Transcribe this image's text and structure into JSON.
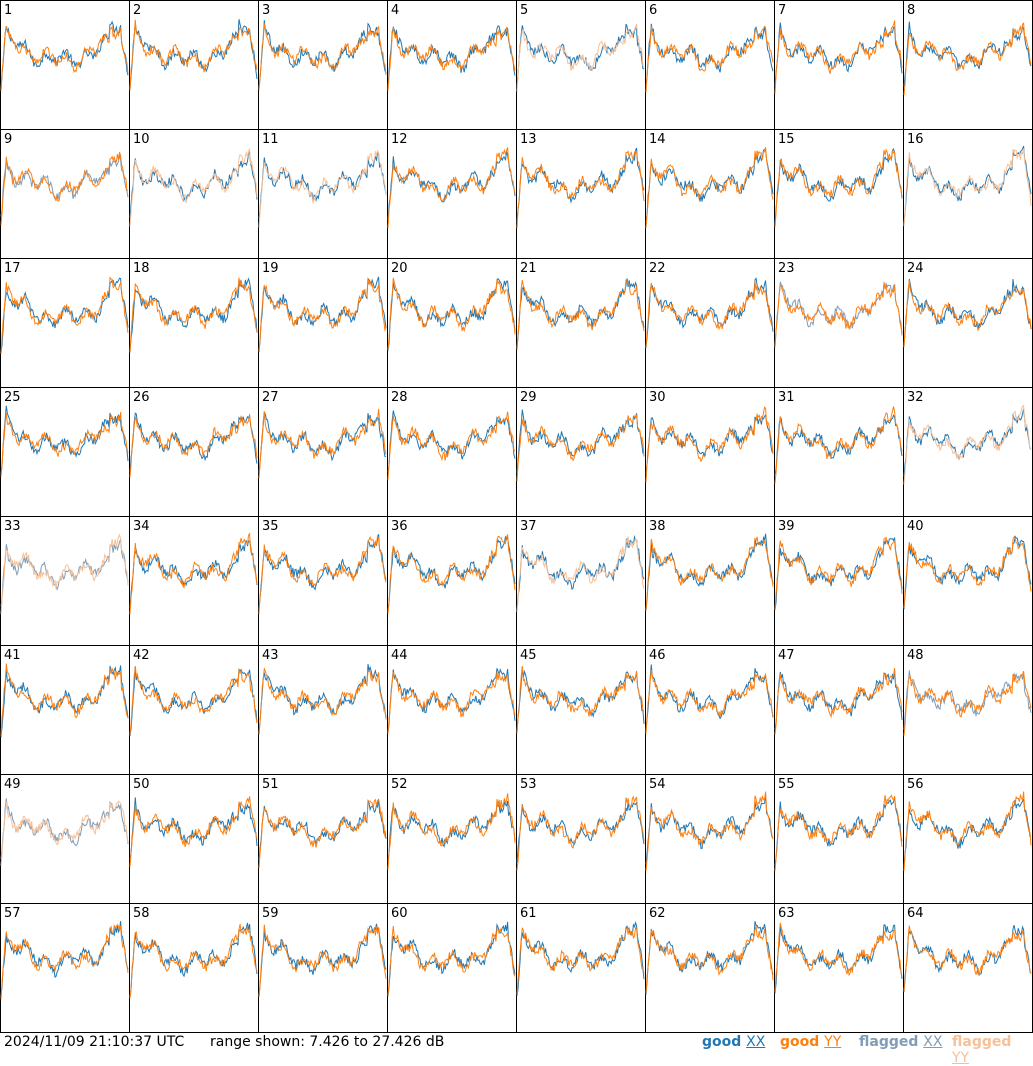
{
  "chart_data": {
    "type": "line",
    "grid": {
      "rows": 8,
      "cols": 8
    },
    "timestamp": "2024/11/09 21:10:37 UTC",
    "range_text": "range shown: 7.426 to 27.426 dB",
    "ylim": [
      7.426,
      27.426
    ],
    "legend": [
      {
        "label": "good",
        "pol": "XX",
        "color": "#1f77b4"
      },
      {
        "label": "good",
        "pol": "YY",
        "color": "#ff7f0e"
      },
      {
        "label": "flagged",
        "pol": "XX",
        "color": "#7f9cb8"
      },
      {
        "label": "flagged",
        "pol": "YY",
        "color": "#f7c097"
      }
    ],
    "colors": {
      "goodXX": "#1f77b4",
      "goodYY": "#ff7f0e",
      "flagXX": "#7f9cb8",
      "flagYY": "#f7c097"
    },
    "panels": [
      {
        "id": "1",
        "xx": "g",
        "yy": "g"
      },
      {
        "id": "2",
        "xx": "g",
        "yy": "g"
      },
      {
        "id": "3",
        "xx": "g",
        "yy": "g"
      },
      {
        "id": "4",
        "xx": "g",
        "yy": "g"
      },
      {
        "id": "5",
        "xx": "g",
        "yy": "f"
      },
      {
        "id": "6",
        "xx": "g",
        "yy": "g"
      },
      {
        "id": "7",
        "xx": "g",
        "yy": "g"
      },
      {
        "id": "8",
        "xx": "g",
        "yy": "g"
      },
      {
        "id": "9",
        "xx": "f",
        "yy": "g"
      },
      {
        "id": "10",
        "xx": "g",
        "yy": "f"
      },
      {
        "id": "11",
        "xx": "g",
        "yy": "f"
      },
      {
        "id": "12",
        "xx": "g",
        "yy": "g"
      },
      {
        "id": "13",
        "xx": "g",
        "yy": "g"
      },
      {
        "id": "14",
        "xx": "g",
        "yy": "g"
      },
      {
        "id": "15",
        "xx": "g",
        "yy": "g"
      },
      {
        "id": "16",
        "xx": "g",
        "yy": "f"
      },
      {
        "id": "17",
        "xx": "g",
        "yy": "g"
      },
      {
        "id": "18",
        "xx": "g",
        "yy": "g"
      },
      {
        "id": "19",
        "xx": "g",
        "yy": "g"
      },
      {
        "id": "20",
        "xx": "g",
        "yy": "g"
      },
      {
        "id": "21",
        "xx": "g",
        "yy": "g"
      },
      {
        "id": "22",
        "xx": "g",
        "yy": "g"
      },
      {
        "id": "23",
        "xx": "f",
        "yy": "g"
      },
      {
        "id": "24",
        "xx": "g",
        "yy": "g"
      },
      {
        "id": "25",
        "xx": "g",
        "yy": "g"
      },
      {
        "id": "26",
        "xx": "g",
        "yy": "g"
      },
      {
        "id": "27",
        "xx": "g",
        "yy": "g"
      },
      {
        "id": "28",
        "xx": "g",
        "yy": "g"
      },
      {
        "id": "29",
        "xx": "g",
        "yy": "g"
      },
      {
        "id": "30",
        "xx": "g",
        "yy": "g"
      },
      {
        "id": "31",
        "xx": "g",
        "yy": "g"
      },
      {
        "id": "32",
        "xx": "g",
        "yy": "f"
      },
      {
        "id": "33",
        "xx": "f",
        "yy": "f"
      },
      {
        "id": "34",
        "xx": "g",
        "yy": "g"
      },
      {
        "id": "35",
        "xx": "g",
        "yy": "g"
      },
      {
        "id": "36",
        "xx": "g",
        "yy": "g"
      },
      {
        "id": "37",
        "xx": "g",
        "yy": "f"
      },
      {
        "id": "38",
        "xx": "g",
        "yy": "g"
      },
      {
        "id": "39",
        "xx": "g",
        "yy": "g"
      },
      {
        "id": "40",
        "xx": "g",
        "yy": "g"
      },
      {
        "id": "41",
        "xx": "g",
        "yy": "g"
      },
      {
        "id": "42",
        "xx": "g",
        "yy": "g"
      },
      {
        "id": "43",
        "xx": "g",
        "yy": "g"
      },
      {
        "id": "44",
        "xx": "g",
        "yy": "g"
      },
      {
        "id": "45",
        "xx": "g",
        "yy": "g"
      },
      {
        "id": "46",
        "xx": "g",
        "yy": "g"
      },
      {
        "id": "47",
        "xx": "g",
        "yy": "g"
      },
      {
        "id": "48",
        "xx": "f",
        "yy": "g"
      },
      {
        "id": "49",
        "xx": "f",
        "yy": "f"
      },
      {
        "id": "50",
        "xx": "g",
        "yy": "g"
      },
      {
        "id": "51",
        "xx": "g",
        "yy": "g"
      },
      {
        "id": "52",
        "xx": "g",
        "yy": "g"
      },
      {
        "id": "53",
        "xx": "g",
        "yy": "g"
      },
      {
        "id": "54",
        "xx": "g",
        "yy": "g"
      },
      {
        "id": "55",
        "xx": "g",
        "yy": "g"
      },
      {
        "id": "56",
        "xx": "g",
        "yy": "g"
      },
      {
        "id": "57",
        "xx": "g",
        "yy": "g"
      },
      {
        "id": "58",
        "xx": "g",
        "yy": "g"
      },
      {
        "id": "59",
        "xx": "g",
        "yy": "g"
      },
      {
        "id": "60",
        "xx": "g",
        "yy": "g"
      },
      {
        "id": "61",
        "xx": "g",
        "yy": "g"
      },
      {
        "id": "62",
        "xx": "g",
        "yy": "g"
      },
      {
        "id": "63",
        "xx": "g",
        "yy": "g"
      },
      {
        "id": "64",
        "xx": "g",
        "yy": "g"
      }
    ]
  }
}
